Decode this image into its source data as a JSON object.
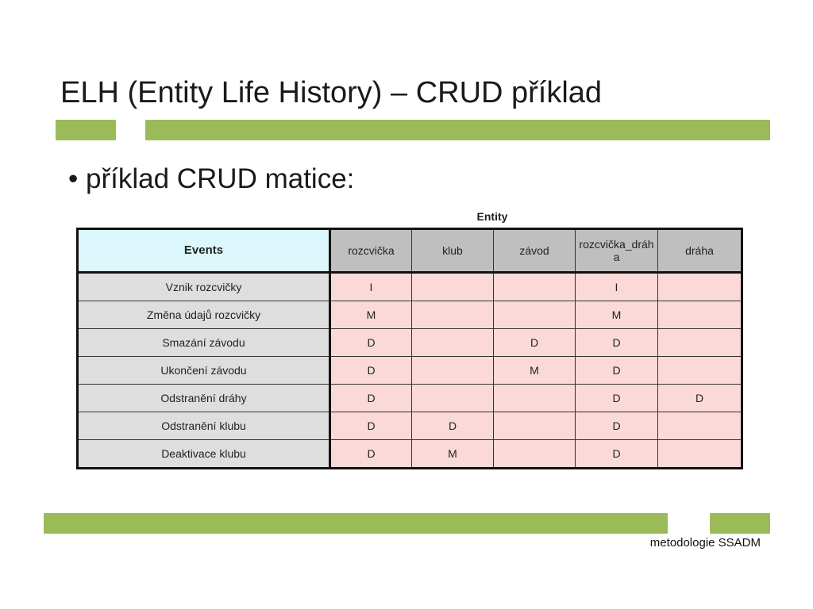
{
  "slide": {
    "title": "ELH (Entity Life History) – CRUD příklad",
    "bullet": "• příklad CRUD matice:",
    "footer": "metodologie SSADM",
    "accent_color": "#9bbb59"
  },
  "crud_table": {
    "caption": "Entity",
    "row_header": "Events",
    "columns": [
      "rozcvička",
      "klub",
      "závod",
      "rozcvička_dráha",
      "dráha"
    ],
    "rows": [
      {
        "event": "Vznik rozcvičky",
        "cells": [
          "I",
          "",
          "",
          "I",
          ""
        ]
      },
      {
        "event": "Změna údajů rozcvičky",
        "cells": [
          "M",
          "",
          "",
          "M",
          ""
        ]
      },
      {
        "event": "Smazání závodu",
        "cells": [
          "D",
          "",
          "D",
          "D",
          ""
        ]
      },
      {
        "event": "Ukončení závodu",
        "cells": [
          "D",
          "",
          "M",
          "D",
          ""
        ]
      },
      {
        "event": "Odstranění dráhy",
        "cells": [
          "D",
          "",
          "",
          "D",
          "D"
        ]
      },
      {
        "event": "Odstranění klubu",
        "cells": [
          "D",
          "D",
          "",
          "D",
          ""
        ]
      },
      {
        "event": "Deaktivace klubu",
        "cells": [
          "D",
          "M",
          "",
          "D",
          ""
        ]
      }
    ]
  }
}
